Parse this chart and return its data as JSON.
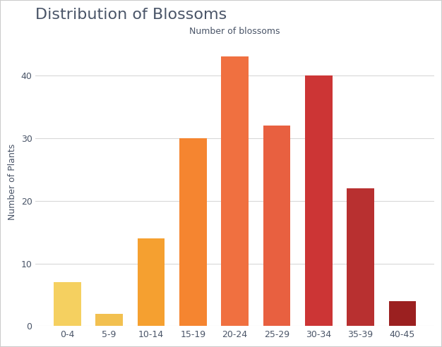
{
  "title": "Distribution of Blossoms",
  "xlabel": "Number of blossoms",
  "ylabel": "Number of Plants",
  "categories": [
    "0-4",
    "5-9",
    "10-14",
    "15-19",
    "20-24",
    "25-29",
    "30-34",
    "35-39",
    "40-45"
  ],
  "values": [
    7,
    2,
    14,
    30,
    43,
    32,
    40,
    22,
    4
  ],
  "bar_colors": [
    "#F5D060",
    "#F2C050",
    "#F5A030",
    "#F58530",
    "#F07040",
    "#E86040",
    "#CC3535",
    "#B83030",
    "#9B2020"
  ],
  "title_color": "#4a5568",
  "title_fontsize": 16,
  "xlabel_color": "#4a5568",
  "xlabel_fontsize": 9,
  "ylabel_color": "#4a5568",
  "ylabel_fontsize": 9,
  "tick_color": "#4a5568",
  "tick_fontsize": 9,
  "ylim": [
    0,
    46
  ],
  "yticks": [
    0,
    10,
    20,
    30,
    40
  ],
  "grid_color": "#d8d8d8",
  "background_color": "#ffffff",
  "plot_bg_color": "#ffffff",
  "bar_width": 0.65,
  "border_color": "#cccccc"
}
